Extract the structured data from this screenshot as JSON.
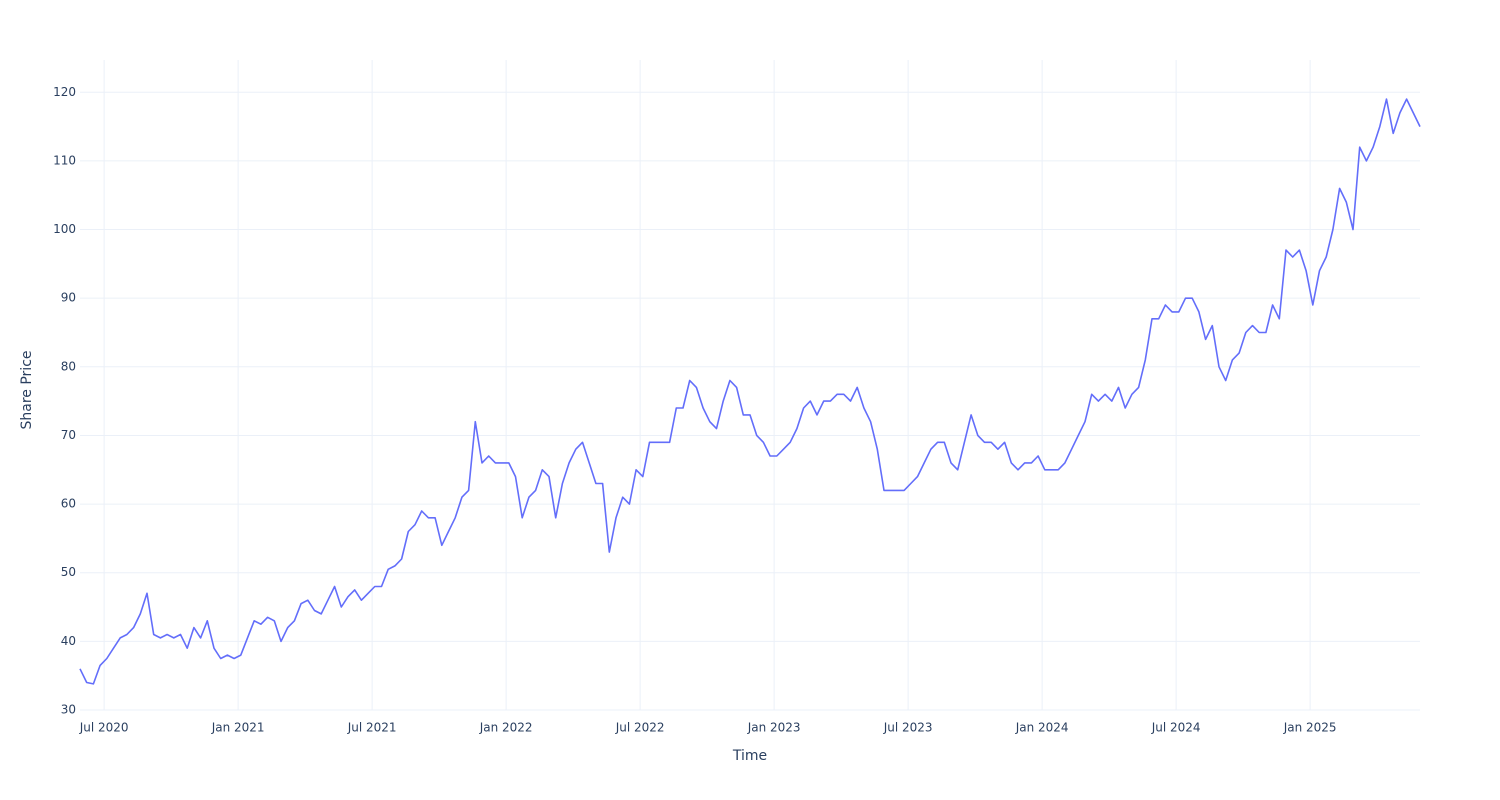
{
  "chart_data": {
    "type": "line",
    "x_label": "Time",
    "y_label": "Share Price",
    "x": [
      2020.41,
      2020.435,
      2020.46,
      2020.485,
      2020.51,
      2020.535,
      2020.56,
      2020.585,
      2020.61,
      2020.635,
      2020.66,
      2020.685,
      2020.71,
      2020.735,
      2020.76,
      2020.785,
      2020.81,
      2020.835,
      2020.86,
      2020.885,
      2020.91,
      2020.935,
      2020.96,
      2020.985,
      2021.01,
      2021.035,
      2021.06,
      2021.085,
      2021.11,
      2021.135,
      2021.16,
      2021.185,
      2021.21,
      2021.235,
      2021.26,
      2021.285,
      2021.31,
      2021.335,
      2021.36,
      2021.385,
      2021.41,
      2021.435,
      2021.46,
      2021.485,
      2021.51,
      2021.535,
      2021.56,
      2021.585,
      2021.61,
      2021.635,
      2021.66,
      2021.685,
      2021.71,
      2021.735,
      2021.76,
      2021.785,
      2021.81,
      2021.835,
      2021.86,
      2021.885,
      2021.91,
      2021.935,
      2021.96,
      2021.985,
      2022.01,
      2022.035,
      2022.06,
      2022.085,
      2022.11,
      2022.135,
      2022.16,
      2022.185,
      2022.21,
      2022.235,
      2022.26,
      2022.285,
      2022.31,
      2022.335,
      2022.36,
      2022.385,
      2022.41,
      2022.435,
      2022.46,
      2022.485,
      2022.51,
      2022.535,
      2022.56,
      2022.585,
      2022.61,
      2022.635,
      2022.66,
      2022.685,
      2022.71,
      2022.735,
      2022.76,
      2022.785,
      2022.81,
      2022.835,
      2022.86,
      2022.885,
      2022.91,
      2022.935,
      2022.96,
      2022.985,
      2023.01,
      2023.035,
      2023.06,
      2023.085,
      2023.11,
      2023.135,
      2023.16,
      2023.185,
      2023.21,
      2023.235,
      2023.26,
      2023.285,
      2023.31,
      2023.335,
      2023.36,
      2023.385,
      2023.41,
      2023.435,
      2023.46,
      2023.485,
      2023.51,
      2023.535,
      2023.56,
      2023.585,
      2023.61,
      2023.635,
      2023.66,
      2023.685,
      2023.71,
      2023.735,
      2023.76,
      2023.785,
      2023.81,
      2023.835,
      2023.86,
      2023.885,
      2023.91,
      2023.935,
      2023.96,
      2023.985,
      2024.01,
      2024.035,
      2024.06,
      2024.085,
      2024.11,
      2024.135,
      2024.16,
      2024.185,
      2024.21,
      2024.235,
      2024.26,
      2024.285,
      2024.31,
      2024.335,
      2024.36,
      2024.385,
      2024.41,
      2024.435,
      2024.46,
      2024.485,
      2024.51,
      2024.535,
      2024.56,
      2024.585,
      2024.61,
      2024.635,
      2024.66,
      2024.685,
      2024.71,
      2024.735,
      2024.76,
      2024.785,
      2024.81,
      2024.835,
      2024.86,
      2024.885,
      2024.91,
      2024.935,
      2024.96,
      2024.985,
      2025.01,
      2025.035,
      2025.06,
      2025.085,
      2025.11,
      2025.135,
      2025.16,
      2025.185,
      2025.21,
      2025.235,
      2025.26,
      2025.285,
      2025.31,
      2025.335,
      2025.36,
      2025.385,
      2025.41
    ],
    "series": [
      {
        "name": "Share Price",
        "color": "#636efa",
        "values": [
          36,
          34,
          33.8,
          36.5,
          37.5,
          39,
          40.5,
          41,
          42,
          44,
          47,
          41,
          40.5,
          41,
          40.5,
          41,
          39,
          42,
          40.5,
          43,
          39,
          37.5,
          38,
          37.5,
          38,
          40.5,
          43,
          42.5,
          43.5,
          43,
          40,
          42,
          43,
          45.5,
          46,
          44.5,
          44,
          46,
          48,
          45,
          46.5,
          47.5,
          46,
          47,
          48,
          48,
          50.5,
          51,
          52,
          56,
          57,
          59,
          58,
          58,
          54,
          56,
          58,
          61,
          62,
          72,
          66,
          67,
          66,
          66,
          66,
          64,
          58,
          61,
          62,
          65,
          64,
          58,
          63,
          66,
          68,
          69,
          66,
          63,
          63,
          53,
          58,
          61,
          60,
          65,
          64,
          69,
          69,
          69,
          69,
          74,
          74,
          78,
          77,
          74,
          72,
          71,
          75,
          78,
          77,
          73,
          73,
          70,
          69,
          67,
          67,
          68,
          69,
          71,
          74,
          75,
          73,
          75,
          75,
          76,
          76,
          75,
          77,
          74,
          72,
          68,
          62,
          62,
          62,
          62,
          63,
          64,
          66,
          68,
          69,
          69,
          66,
          65,
          69,
          73,
          70,
          69,
          69,
          68,
          69,
          66,
          65,
          66,
          66,
          67,
          65,
          65,
          65,
          66,
          68,
          70,
          72,
          76,
          75,
          76,
          75,
          77,
          74,
          76,
          77,
          81,
          87,
          87,
          89,
          88,
          88,
          90,
          90,
          88,
          84,
          86,
          80,
          78,
          81,
          82,
          85,
          86,
          85,
          85,
          89,
          87,
          97,
          96,
          97,
          94,
          89,
          94,
          96,
          100,
          106,
          104,
          100,
          112,
          110,
          112,
          115,
          119,
          114,
          117,
          119,
          117,
          115
        ]
      }
    ],
    "xlim": [
      2020.41,
      2025.41
    ],
    "xticks": [
      {
        "value": 2020.5,
        "label": "Jul 2020"
      },
      {
        "value": 2021,
        "label": "Jan 2021"
      },
      {
        "value": 2021.5,
        "label": "Jul 2021"
      },
      {
        "value": 2022,
        "label": "Jan 2022"
      },
      {
        "value": 2022.5,
        "label": "Jul 2022"
      },
      {
        "value": 2023,
        "label": "Jan 2023"
      },
      {
        "value": 2023.5,
        "label": "Jul 2023"
      },
      {
        "value": 2024,
        "label": "Jan 2024"
      },
      {
        "value": 2024.5,
        "label": "Jul 2024"
      },
      {
        "value": 2025,
        "label": "Jan 2025"
      }
    ],
    "ylim": [
      30,
      124.7
    ],
    "yticks": [
      30,
      40,
      50,
      60,
      70,
      80,
      90,
      100,
      110,
      120
    ],
    "grid": true
  }
}
